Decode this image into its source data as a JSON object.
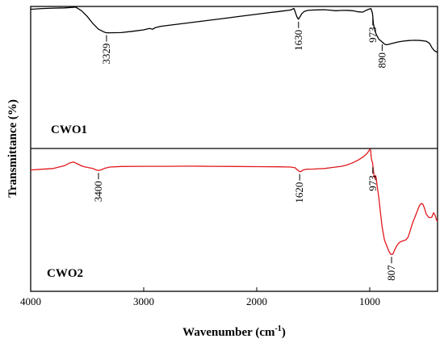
{
  "chart_data": {
    "type": "line",
    "xlabel_main": "Wavenumber (cm",
    "xlabel_sup": "-1",
    "xlabel_close": ")",
    "ylabel": "Transmittance (%)",
    "xlim": [
      4000,
      400
    ],
    "xticks": [
      "4000",
      "3000",
      "2000",
      "1000"
    ],
    "xtick_values": [
      4000,
      3000,
      2000,
      1000
    ],
    "panels": [
      {
        "label": "CWO1",
        "color": "#000000",
        "ylim": [
          0,
          100
        ],
        "points": [
          [
            4000,
            98
          ],
          [
            3900,
            98.5
          ],
          [
            3800,
            98.8
          ],
          [
            3700,
            99
          ],
          [
            3600,
            99.5
          ],
          [
            3550,
            97
          ],
          [
            3500,
            93
          ],
          [
            3450,
            88
          ],
          [
            3400,
            84
          ],
          [
            3350,
            82
          ],
          [
            3329,
            81.5
          ],
          [
            3300,
            81.5
          ],
          [
            3200,
            81.6
          ],
          [
            3100,
            82.5
          ],
          [
            3000,
            83.5
          ],
          [
            2950,
            84.5
          ],
          [
            2920,
            84
          ],
          [
            2900,
            85
          ],
          [
            2850,
            86
          ],
          [
            2700,
            87.5
          ],
          [
            2500,
            89.5
          ],
          [
            2300,
            91.5
          ],
          [
            2100,
            93.5
          ],
          [
            1900,
            95.5
          ],
          [
            1800,
            96.5
          ],
          [
            1700,
            97.5
          ],
          [
            1670,
            98.6
          ],
          [
            1650,
            94
          ],
          [
            1640,
            92
          ],
          [
            1630,
            91
          ],
          [
            1615,
            93
          ],
          [
            1600,
            95
          ],
          [
            1580,
            96.5
          ],
          [
            1550,
            97.2
          ],
          [
            1500,
            97.5
          ],
          [
            1450,
            97.6
          ],
          [
            1400,
            97.7
          ],
          [
            1350,
            97.4
          ],
          [
            1300,
            97
          ],
          [
            1250,
            97.2
          ],
          [
            1200,
            97.3
          ],
          [
            1150,
            97
          ],
          [
            1100,
            96.2
          ],
          [
            1060,
            96
          ],
          [
            1040,
            97
          ],
          [
            1010,
            98
          ],
          [
            990,
            98.5
          ],
          [
            982,
            97
          ],
          [
            976,
            95
          ],
          [
            973,
            93
          ],
          [
            968,
            88
          ],
          [
            955,
            83
          ],
          [
            940,
            80
          ],
          [
            920,
            77
          ],
          [
            905,
            76
          ],
          [
            890,
            75
          ],
          [
            870,
            73.5
          ],
          [
            850,
            73
          ],
          [
            800,
            74
          ],
          [
            750,
            75
          ],
          [
            700,
            75.6
          ],
          [
            650,
            76
          ],
          [
            600,
            76.2
          ],
          [
            550,
            76
          ],
          [
            500,
            75.5
          ],
          [
            470,
            74
          ],
          [
            450,
            71
          ],
          [
            430,
            69
          ],
          [
            410,
            68
          ],
          [
            400,
            68
          ]
        ]
      },
      {
        "label": "CWO2",
        "color": "#e0191d",
        "ylim": [
          0,
          100
        ],
        "points": [
          [
            4000,
            85
          ],
          [
            3900,
            85.5
          ],
          [
            3800,
            86
          ],
          [
            3750,
            87
          ],
          [
            3700,
            88
          ],
          [
            3650,
            90
          ],
          [
            3620,
            90.5
          ],
          [
            3580,
            89
          ],
          [
            3540,
            87.5
          ],
          [
            3500,
            86.8
          ],
          [
            3450,
            86
          ],
          [
            3420,
            85
          ],
          [
            3400,
            84.6
          ],
          [
            3380,
            85
          ],
          [
            3350,
            86
          ],
          [
            3300,
            87
          ],
          [
            3200,
            87.4
          ],
          [
            3000,
            87.5
          ],
          [
            2800,
            87.5
          ],
          [
            2600,
            87.6
          ],
          [
            2400,
            87.5
          ],
          [
            2200,
            87.4
          ],
          [
            2000,
            87.3
          ],
          [
            1800,
            87.2
          ],
          [
            1700,
            87
          ],
          [
            1660,
            86.5
          ],
          [
            1640,
            85
          ],
          [
            1620,
            83.8
          ],
          [
            1605,
            84
          ],
          [
            1590,
            85
          ],
          [
            1560,
            85.5
          ],
          [
            1500,
            85.6
          ],
          [
            1450,
            85.8
          ],
          [
            1400,
            86
          ],
          [
            1350,
            86.5
          ],
          [
            1300,
            87
          ],
          [
            1250,
            87.5
          ],
          [
            1200,
            88.5
          ],
          [
            1150,
            90
          ],
          [
            1100,
            92
          ],
          [
            1060,
            94
          ],
          [
            1030,
            96
          ],
          [
            1010,
            98
          ],
          [
            998,
            99.5
          ],
          [
            992,
            99
          ],
          [
            986,
            93
          ],
          [
            980,
            91
          ],
          [
            975,
            90
          ],
          [
            968,
            85
          ],
          [
            960,
            80
          ],
          [
            955,
            79
          ],
          [
            948,
            81
          ],
          [
            942,
            79
          ],
          [
            935,
            74
          ],
          [
            920,
            66
          ],
          [
            905,
            55
          ],
          [
            890,
            45
          ],
          [
            870,
            36
          ],
          [
            850,
            32
          ],
          [
            830,
            28
          ],
          [
            815,
            26
          ],
          [
            807,
            25.8
          ],
          [
            795,
            26
          ],
          [
            780,
            29
          ],
          [
            760,
            32
          ],
          [
            740,
            34
          ],
          [
            720,
            35
          ],
          [
            700,
            35.5
          ],
          [
            680,
            36
          ],
          [
            660,
            38
          ],
          [
            640,
            43
          ],
          [
            620,
            48
          ],
          [
            600,
            52
          ],
          [
            580,
            56
          ],
          [
            560,
            60
          ],
          [
            545,
            61.5
          ],
          [
            530,
            61
          ],
          [
            515,
            58
          ],
          [
            500,
            54
          ],
          [
            480,
            52
          ],
          [
            465,
            51.5
          ],
          [
            450,
            52
          ],
          [
            435,
            55
          ],
          [
            420,
            53
          ],
          [
            410,
            50
          ],
          [
            400,
            49
          ]
        ]
      }
    ],
    "annotations": [
      {
        "panel": 0,
        "x": 3329,
        "text": "3329"
      },
      {
        "panel": 0,
        "x": 1630,
        "text": "1630"
      },
      {
        "panel": 0,
        "x": 973,
        "text": "973"
      },
      {
        "panel": 0,
        "x": 890,
        "text": "890"
      },
      {
        "panel": 1,
        "x": 3400,
        "text": "3400"
      },
      {
        "panel": 1,
        "x": 1620,
        "text": "1620"
      },
      {
        "panel": 1,
        "x": 973,
        "text": "973"
      },
      {
        "panel": 1,
        "x": 807,
        "text": "807"
      }
    ]
  }
}
